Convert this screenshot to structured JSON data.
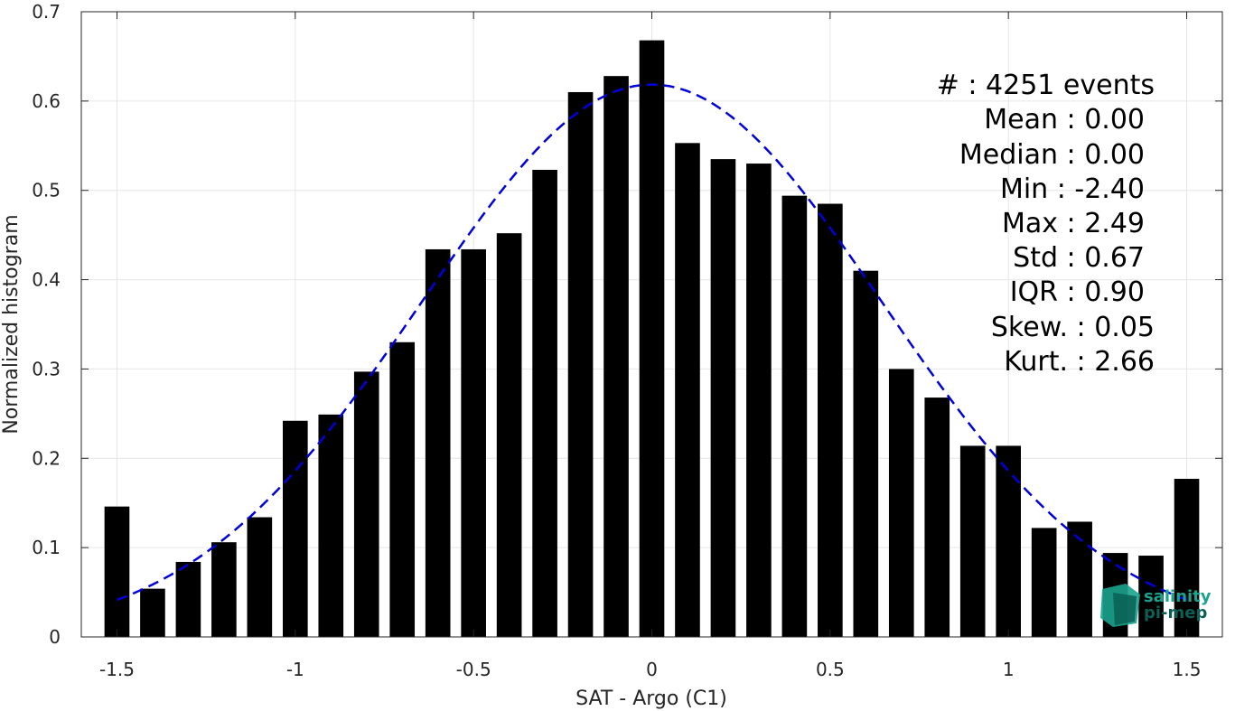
{
  "chart_data": {
    "type": "bar",
    "title": "",
    "xlabel": "SAT - Argo (C1)",
    "ylabel": "Normalized histogram",
    "xlim": [
      -1.6,
      1.6
    ],
    "ylim": [
      0,
      0.7
    ],
    "xticks": [
      -1.5,
      -1,
      -0.5,
      0,
      0.5,
      1,
      1.5
    ],
    "xtick_labels": [
      "-1.5",
      "-1",
      "-0.5",
      "0",
      "0.5",
      "1",
      "1.5"
    ],
    "yticks": [
      0,
      0.1,
      0.2,
      0.3,
      0.4,
      0.5,
      0.6,
      0.7
    ],
    "ytick_labels": [
      "0",
      "0.1",
      "0.2",
      "0.3",
      "0.4",
      "0.5",
      "0.6",
      "0.7"
    ],
    "grid": true,
    "bar_color": "#000000",
    "bar_width": 0.07,
    "bins": [
      -1.5,
      -1.4,
      -1.3,
      -1.2,
      -1.1,
      -1.0,
      -0.9,
      -0.8,
      -0.7,
      -0.6,
      -0.5,
      -0.4,
      -0.3,
      -0.2,
      -0.1,
      0.0,
      0.1,
      0.2,
      0.3,
      0.4,
      0.5,
      0.6,
      0.7,
      0.8,
      0.9,
      1.0,
      1.1,
      1.2,
      1.3,
      1.4,
      1.5
    ],
    "values": [
      0.146,
      0.054,
      0.084,
      0.106,
      0.134,
      0.242,
      0.249,
      0.297,
      0.33,
      0.434,
      0.434,
      0.452,
      0.523,
      0.61,
      0.628,
      0.668,
      0.553,
      0.535,
      0.53,
      0.494,
      0.485,
      0.41,
      0.3,
      0.268,
      0.214,
      0.214,
      0.122,
      0.129,
      0.094,
      0.091,
      0.177
    ],
    "fit": {
      "type": "normal",
      "mean": 0.0,
      "std": 0.645,
      "x_range": [
        -1.5,
        1.5
      ],
      "color": "#0000dd",
      "style": "dashed"
    }
  },
  "stats": {
    "lines": [
      "#  : 4251 events",
      "Mean : 0.00",
      "Median : 0.00",
      "Min : -2.40",
      "Max : 2.49",
      "Std : 0.67",
      "IQR : 0.90",
      "Skew. : 0.05",
      "Kurt. : 2.66"
    ]
  },
  "logo": {
    "line1": "salinity",
    "line2": "pi-mep",
    "color": "#1aa38e",
    "dark_color": "#0b5f55"
  }
}
